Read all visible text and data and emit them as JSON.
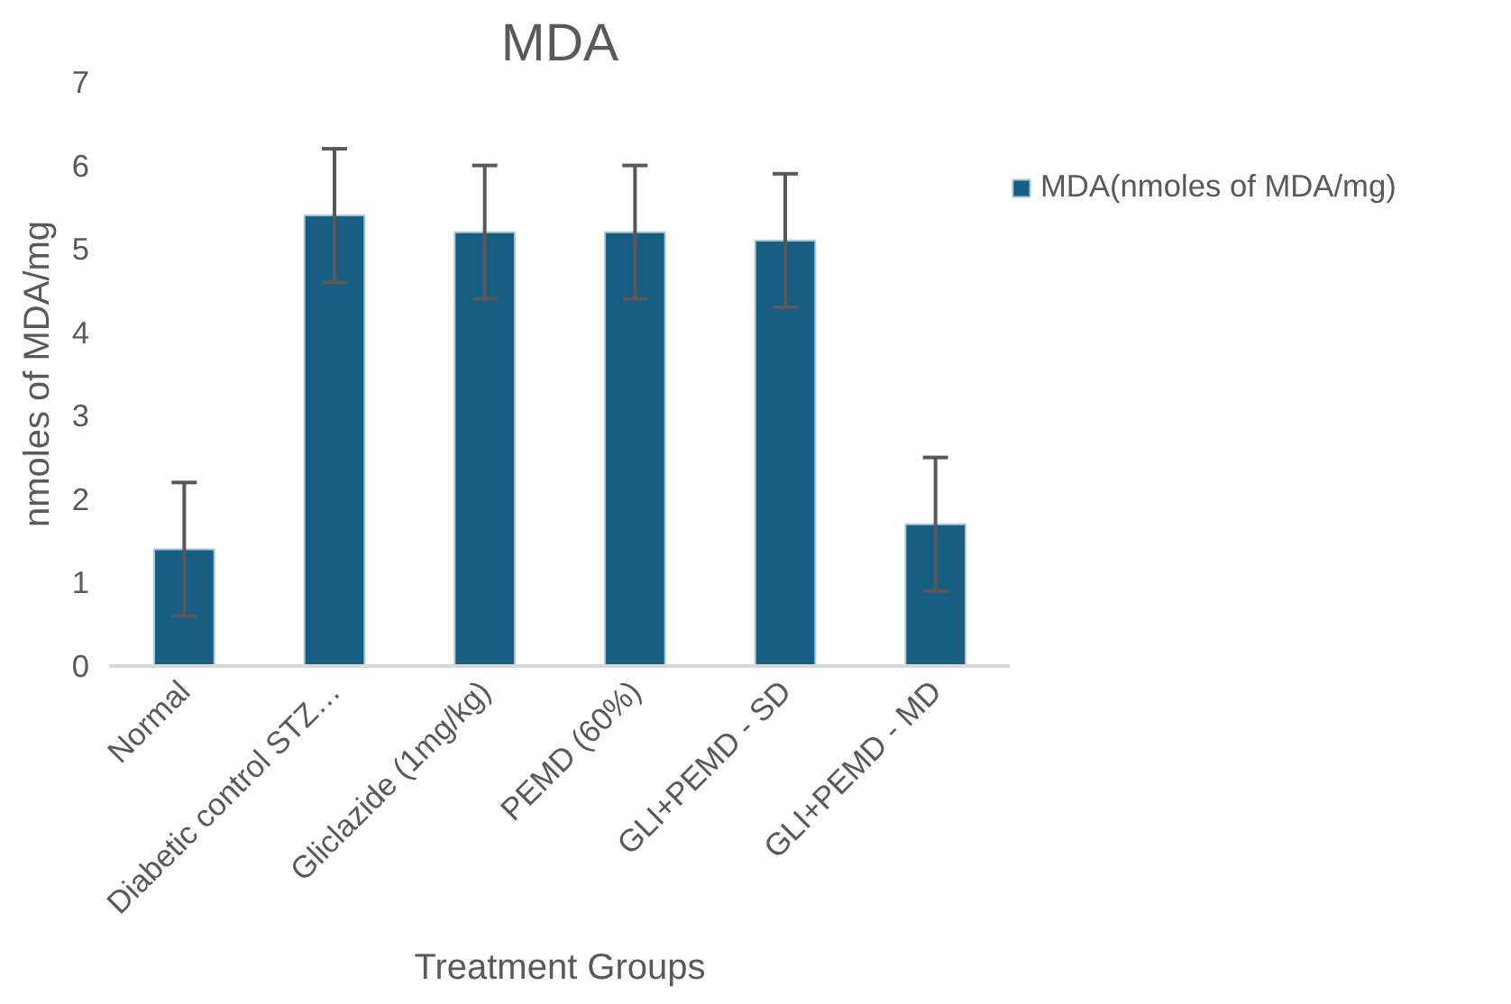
{
  "chart_data": {
    "type": "bar",
    "title": "MDA",
    "xlabel": "Treatment Groups",
    "ylabel": "nmoles of MDA/mg",
    "categories": [
      "Normal",
      "Diabetic control STZ…",
      "Gliclazide (1mg/kg)",
      "PEMD (60%)",
      "GLI+PEMD - SD",
      "GLI+PEMD - MD"
    ],
    "series": [
      {
        "name": "MDA(nmoles of MDA/mg)",
        "color": "#175e82",
        "values": [
          1.4,
          5.4,
          5.2,
          5.2,
          5.1,
          1.7
        ],
        "errors": [
          0.8,
          0.8,
          0.8,
          0.8,
          0.8,
          0.8
        ]
      }
    ],
    "ylim": [
      0,
      7
    ],
    "yticks": [
      0,
      1,
      2,
      3,
      4,
      5,
      6,
      7
    ],
    "grid": false,
    "legend": "right"
  }
}
